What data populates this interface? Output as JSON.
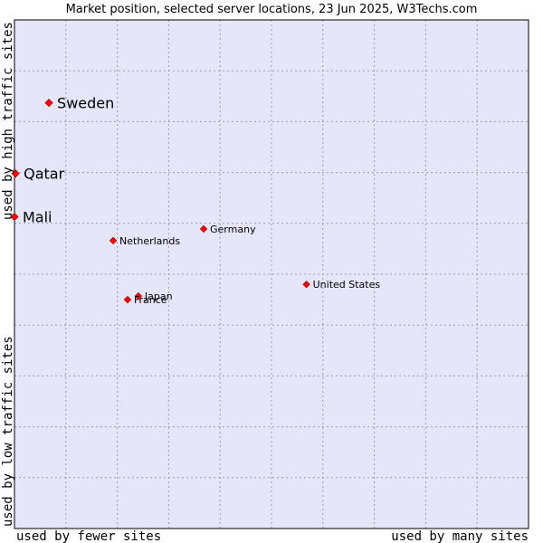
{
  "chart_data": {
    "type": "scatter",
    "title": "Market position, selected server locations, 23 Jun 2025, W3Techs.com",
    "xlabel_low": "used by fewer sites",
    "xlabel_high": "used by many sites",
    "ylabel_low": "used by low traffic sites",
    "ylabel_high": "used by high traffic sites",
    "xlim": [
      0,
      100
    ],
    "ylim": [
      0,
      100
    ],
    "grid": true,
    "colors": {
      "plot_bg": "#e6e6fa",
      "point": "#ff0000",
      "frame": "#000000"
    },
    "points": [
      {
        "name": "Sweden",
        "x": 6.7,
        "y": 83.7,
        "size": "large"
      },
      {
        "name": "Qatar",
        "x": 0.2,
        "y": 69.8,
        "size": "large"
      },
      {
        "name": "Mali",
        "x": 0.0,
        "y": 61.3,
        "size": "large"
      },
      {
        "name": "Germany",
        "x": 36.8,
        "y": 58.9,
        "size": "small"
      },
      {
        "name": "Netherlands",
        "x": 19.2,
        "y": 56.6,
        "size": "small"
      },
      {
        "name": "United States",
        "x": 56.8,
        "y": 48.0,
        "size": "small"
      },
      {
        "name": "Japan",
        "x": 24.1,
        "y": 45.7,
        "size": "small"
      },
      {
        "name": "France",
        "x": 22.0,
        "y": 45.0,
        "size": "small"
      }
    ]
  }
}
